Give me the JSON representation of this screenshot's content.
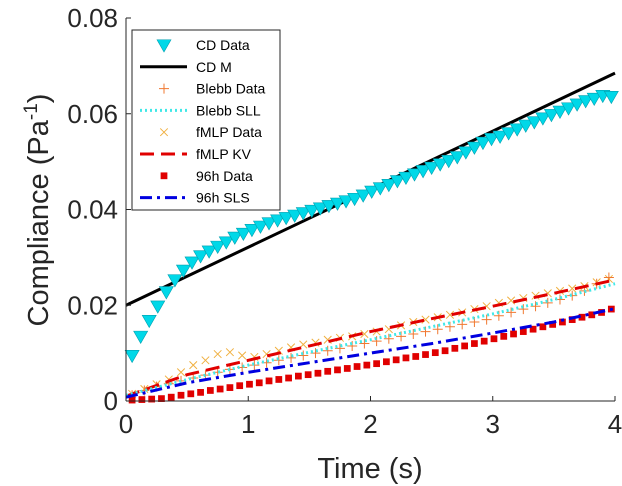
{
  "chart_data": {
    "type": "line",
    "xlabel": "Time (s)",
    "ylabel": "Compliance (Pa",
    "ylabel_superscript": "-1",
    "ylabel_close": ")",
    "xlim": [
      0,
      4
    ],
    "ylim": [
      0,
      0.08
    ],
    "x_ticks": [
      0,
      1,
      2,
      3,
      4
    ],
    "x_tick_labels": [
      "0",
      "1",
      "2",
      "3",
      "4"
    ],
    "y_ticks": [
      0,
      0.02,
      0.04,
      0.06,
      0.08
    ],
    "y_tick_labels": [
      "0",
      "0.02",
      "0.04",
      "0.06",
      "0.08"
    ],
    "grid": false,
    "legend_position": "top-left",
    "series": [
      {
        "name": "CD Data",
        "kind": "markers",
        "marker": "triangle-down",
        "color": "#00d8e8",
        "x": [
          0.05,
          0.12,
          0.19,
          0.26,
          0.33,
          0.4,
          0.47,
          0.54,
          0.61,
          0.68,
          0.75,
          0.82,
          0.89,
          0.96,
          1.03,
          1.1,
          1.17,
          1.24,
          1.31,
          1.38,
          1.45,
          1.52,
          1.59,
          1.66,
          1.73,
          1.8,
          1.87,
          1.94,
          2.01,
          2.08,
          2.15,
          2.22,
          2.29,
          2.36,
          2.43,
          2.5,
          2.57,
          2.64,
          2.71,
          2.78,
          2.85,
          2.92,
          2.99,
          3.06,
          3.13,
          3.2,
          3.27,
          3.34,
          3.41,
          3.48,
          3.55,
          3.62,
          3.69,
          3.76,
          3.83,
          3.9,
          3.97
        ],
        "y": [
          0.0095,
          0.0135,
          0.0168,
          0.0198,
          0.0228,
          0.0253,
          0.0273,
          0.029,
          0.0303,
          0.0313,
          0.0323,
          0.0332,
          0.0342,
          0.035,
          0.0358,
          0.0365,
          0.0372,
          0.0378,
          0.0383,
          0.0388,
          0.0393,
          0.0398,
          0.0403,
          0.0408,
          0.0413,
          0.0418,
          0.0423,
          0.043,
          0.0438,
          0.0445,
          0.0452,
          0.046,
          0.0467,
          0.0474,
          0.0481,
          0.0488,
          0.0495,
          0.0502,
          0.051,
          0.052,
          0.053,
          0.054,
          0.0548,
          0.0553,
          0.056,
          0.0568,
          0.0576,
          0.0583,
          0.0591,
          0.0598,
          0.0605,
          0.0612,
          0.062,
          0.0627,
          0.0632,
          0.0638,
          0.0636
        ]
      },
      {
        "name": "CD M",
        "kind": "line",
        "style": "solid",
        "color": "#000000",
        "width": 3,
        "x": [
          0,
          4
        ],
        "y": [
          0.02,
          0.0685
        ]
      },
      {
        "name": "Blebb Data",
        "kind": "markers",
        "marker": "plus",
        "color": "#f07830",
        "x": [
          0.05,
          0.15,
          0.25,
          0.35,
          0.45,
          0.55,
          0.65,
          0.75,
          0.85,
          0.95,
          1.05,
          1.15,
          1.25,
          1.35,
          1.45,
          1.55,
          1.65,
          1.75,
          1.85,
          1.95,
          2.05,
          2.15,
          2.25,
          2.35,
          2.45,
          2.55,
          2.65,
          2.75,
          2.85,
          2.95,
          3.05,
          3.15,
          3.25,
          3.35,
          3.45,
          3.55,
          3.65,
          3.75,
          3.85,
          3.95
        ],
        "y": [
          0.0012,
          0.0022,
          0.003,
          0.0036,
          0.0042,
          0.0048,
          0.0054,
          0.006,
          0.0066,
          0.007,
          0.0075,
          0.008,
          0.0085,
          0.009,
          0.0095,
          0.01,
          0.0105,
          0.011,
          0.0115,
          0.012,
          0.0125,
          0.013,
          0.0135,
          0.014,
          0.0145,
          0.015,
          0.0155,
          0.016,
          0.0165,
          0.017,
          0.0178,
          0.0185,
          0.0192,
          0.0198,
          0.0205,
          0.0212,
          0.022,
          0.023,
          0.0245,
          0.0258
        ]
      },
      {
        "name": "Blebb SLL",
        "kind": "line",
        "style": "dotted",
        "color": "#40e8e8",
        "width": 3,
        "x": [
          0,
          0.5,
          1,
          1.5,
          2,
          2.5,
          3,
          3.5,
          4
        ],
        "y": [
          0.0012,
          0.0045,
          0.0075,
          0.0102,
          0.0128,
          0.0155,
          0.0182,
          0.0212,
          0.0245
        ]
      },
      {
        "name": "fMLP Data",
        "kind": "markers",
        "marker": "x",
        "color": "#f0b040",
        "x": [
          0.05,
          0.15,
          0.25,
          0.35,
          0.45,
          0.55,
          0.65,
          0.75,
          0.85,
          0.95,
          1.05,
          1.15,
          1.25,
          1.35,
          1.45,
          1.55,
          1.65,
          1.75,
          1.85,
          1.95,
          2.05,
          2.15,
          2.25,
          2.35,
          2.45,
          2.55,
          2.65,
          2.75,
          2.85,
          2.95,
          3.05,
          3.15,
          3.25,
          3.35,
          3.45,
          3.55,
          3.65,
          3.75,
          3.85,
          3.95
        ],
        "y": [
          0.0015,
          0.0025,
          0.0035,
          0.0045,
          0.006,
          0.0075,
          0.0085,
          0.0098,
          0.0102,
          0.0095,
          0.0092,
          0.0098,
          0.0105,
          0.0112,
          0.0118,
          0.0122,
          0.0128,
          0.0132,
          0.0135,
          0.014,
          0.0145,
          0.015,
          0.0158,
          0.0165,
          0.017,
          0.0175,
          0.018,
          0.0185,
          0.0192,
          0.0198,
          0.0205,
          0.021,
          0.0215,
          0.022,
          0.0225,
          0.023,
          0.0235,
          0.024,
          0.0248,
          0.0255
        ]
      },
      {
        "name": "fMLP KV",
        "kind": "line",
        "style": "dashed",
        "color": "#e00000",
        "width": 3,
        "x": [
          0,
          0.5,
          1,
          1.5,
          2,
          2.5,
          3,
          3.5,
          4
        ],
        "y": [
          0.001,
          0.0055,
          0.0085,
          0.0115,
          0.0145,
          0.0172,
          0.0198,
          0.0225,
          0.0253
        ]
      },
      {
        "name": "96h Data",
        "kind": "markers",
        "marker": "square",
        "color": "#e00000",
        "x": [
          0.05,
          0.13,
          0.21,
          0.29,
          0.37,
          0.45,
          0.53,
          0.61,
          0.69,
          0.77,
          0.85,
          0.93,
          1.01,
          1.09,
          1.17,
          1.25,
          1.33,
          1.41,
          1.49,
          1.57,
          1.65,
          1.73,
          1.81,
          1.89,
          1.97,
          2.05,
          2.13,
          2.21,
          2.29,
          2.37,
          2.45,
          2.53,
          2.61,
          2.69,
          2.77,
          2.85,
          2.93,
          3.01,
          3.09,
          3.17,
          3.25,
          3.33,
          3.41,
          3.49,
          3.57,
          3.65,
          3.73,
          3.81,
          3.89,
          3.97
        ],
        "y": [
          0.0002,
          0.0003,
          0.0004,
          0.0005,
          0.0008,
          0.0012,
          0.0015,
          0.0018,
          0.0022,
          0.0025,
          0.0028,
          0.0032,
          0.0035,
          0.0038,
          0.0042,
          0.0045,
          0.0048,
          0.0052,
          0.0055,
          0.0058,
          0.0062,
          0.0065,
          0.0068,
          0.0072,
          0.0075,
          0.0078,
          0.0082,
          0.0086,
          0.009,
          0.0093,
          0.0097,
          0.0101,
          0.0105,
          0.011,
          0.0115,
          0.012,
          0.0125,
          0.013,
          0.0135,
          0.014,
          0.0145,
          0.015,
          0.0155,
          0.016,
          0.0165,
          0.017,
          0.0175,
          0.018,
          0.0185,
          0.0192
        ]
      },
      {
        "name": "96h SLS",
        "kind": "line",
        "style": "dashdot",
        "color": "#0000e0",
        "width": 3,
        "x": [
          0,
          0.5,
          1,
          1.5,
          2,
          2.5,
          3,
          3.5,
          4
        ],
        "y": [
          0.0008,
          0.0038,
          0.006,
          0.008,
          0.01,
          0.012,
          0.0142,
          0.0165,
          0.0193
        ]
      }
    ]
  }
}
